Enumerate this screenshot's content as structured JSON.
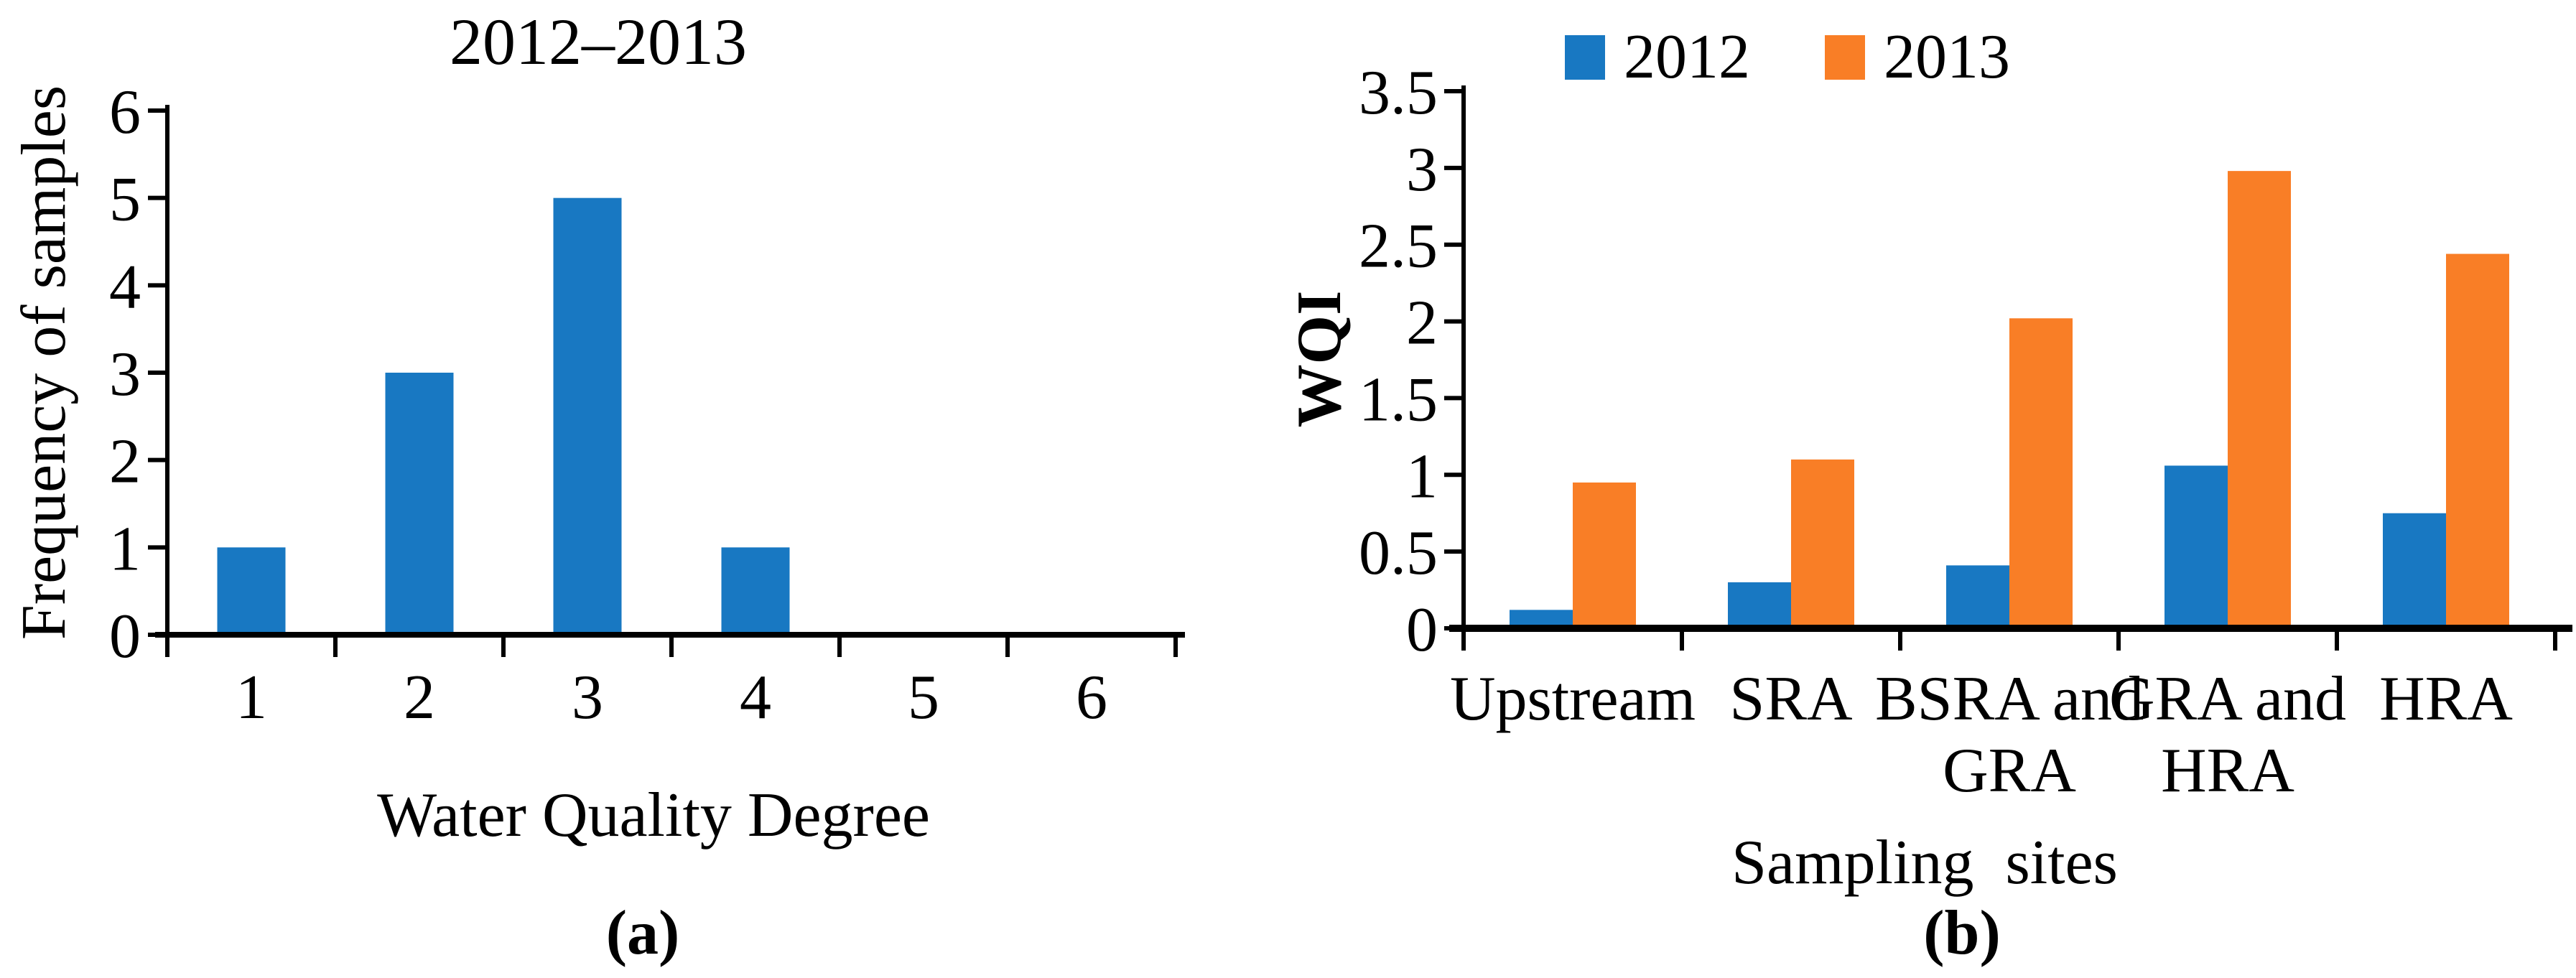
{
  "page": {
    "background": "#ffffff"
  },
  "panels": {
    "a": {
      "title": "2012–2013",
      "ylabel": "Frequency of samples",
      "xlabel": "Water Quality Degree",
      "caption": "(a)"
    },
    "b": {
      "ylabel": "WQI",
      "xlabel": "Sampling  sites",
      "caption": "(b)"
    }
  },
  "colors": {
    "bar_blue": "#1878c2",
    "bar_orange": "#f97e26",
    "axis": "#000000",
    "text": "#000000"
  },
  "chart_data": [
    {
      "type": "bar",
      "panel": "a",
      "title": "2012–2013",
      "categories": [
        "1",
        "2",
        "3",
        "4",
        "5",
        "6"
      ],
      "values": [
        1,
        3,
        5,
        1,
        0,
        0
      ],
      "xlabel": "Water Quality Degree",
      "ylabel": "Frequency of samples",
      "ylim": [
        0,
        6
      ],
      "ytick_step": 1,
      "yticks": [
        "0",
        "1",
        "2",
        "3",
        "4",
        "5",
        "6"
      ],
      "bar_color": "#1878c2",
      "grid": false,
      "legend_position": "none",
      "caption": "(a)"
    },
    {
      "type": "bar",
      "panel": "b",
      "categories": [
        "Upstream",
        "SRA",
        "BSRA and GRA",
        "GRA and HRA",
        "HRA"
      ],
      "category_label_lines": [
        [
          "Upstream"
        ],
        [
          "SRA"
        ],
        [
          "BSRA and",
          "GRA"
        ],
        [
          "GRA and",
          "HRA"
        ],
        [
          "HRA"
        ]
      ],
      "series": [
        {
          "name": "2012",
          "color": "#1878c2",
          "values": [
            0.12,
            0.3,
            0.41,
            1.06,
            0.75
          ]
        },
        {
          "name": "2013",
          "color": "#f97e26",
          "values": [
            0.95,
            1.1,
            2.02,
            2.98,
            2.44
          ]
        }
      ],
      "xlabel": "Sampling  sites",
      "ylabel": "WQI",
      "ylim": [
        0,
        3.5
      ],
      "ytick_step": 0.5,
      "yticks": [
        "0",
        "0.5",
        "1",
        "1.5",
        "2",
        "2.5",
        "3",
        "3.5"
      ],
      "grid": false,
      "legend_position": "top",
      "caption": "(b)"
    }
  ]
}
